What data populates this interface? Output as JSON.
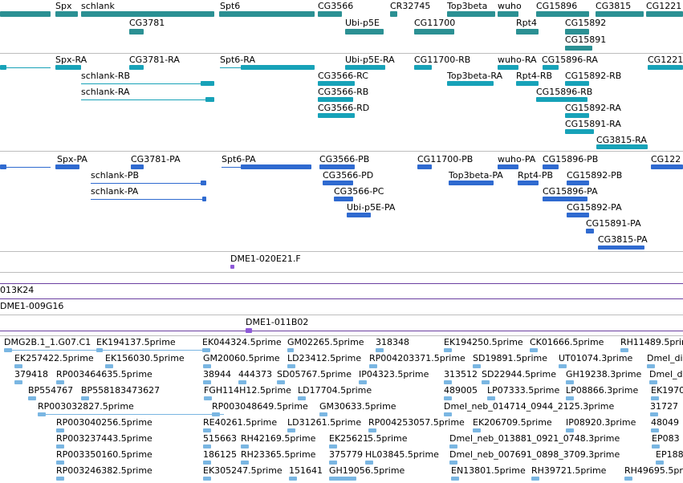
{
  "gene_track": {
    "labels": [
      "Spx",
      "schlank",
      "Spt6",
      "CG3566",
      "CR32745",
      "Top3beta",
      "wuho",
      "CG15896",
      "CG3815",
      "CG1221",
      "CG3781",
      "Ubi-p5E",
      "CG11700",
      "Rpt4",
      "CG15892",
      "CG15891"
    ]
  },
  "rna_track": {
    "labels": [
      "Spx-RA",
      "CG3781-RA",
      "Spt6-RA",
      "Ubi-p5E-RA",
      "CG11700-RB",
      "wuho-RA",
      "CG15896-RA",
      "CG1221",
      "schlank-RB",
      "Top3beta-RA",
      "Rpt4-RB",
      "CG15892-RB",
      "schlank-RA",
      "CG3566-RC",
      "CG3566-RB",
      "CG15896-RB",
      "CG3566-RD",
      "CG15892-RA",
      "CG15891-RA",
      "CG3815-RA"
    ]
  },
  "protein_track": {
    "labels": [
      "Spx-PA",
      "CG3781-PA",
      "Spt6-PA",
      "CG3566-PB",
      "CG11700-PB",
      "wuho-PA",
      "CG15896-PB",
      "CG122",
      "schlank-PB",
      "CG3566-PD",
      "Top3beta-PA",
      "Rpt4-PB",
      "CG15892-PB",
      "schlank-PA",
      "CG3566-PC",
      "CG15896-PA",
      "Ubi-p5E-PA",
      "CG15892-PA",
      "CG15891-PA",
      "CG3815-PA"
    ]
  },
  "clone_tracks": {
    "labels": [
      "DME1-020E21.F",
      "013K24",
      "DME1-009G16",
      "DME1-011B02"
    ]
  },
  "est_track": {
    "labels": [
      "DMG2B.1_1.G07.C1",
      "EK194137.5prime",
      "EK044324.5prime",
      "GM02265.5prime",
      "318348",
      "EK194250.5prime",
      "CK01666.5prime",
      "RH11489.5prime",
      "EK257422.5prime",
      "EK156030.5prime",
      "GM20060.5prime",
      "LD23412.5prime",
      "RP004203371.5prime",
      "SD19891.5prime",
      "UT01074.3prime",
      "Dmel_dig",
      "379418",
      "RP003464635.5prime",
      "38944",
      "444373",
      "SD05767.5prime",
      "IP04323.5prime",
      "313512",
      "SD22944.5prime",
      "GH19238.3prime",
      "Dmel_d",
      "BP554767",
      "BP558183473627",
      "FGH114H12.5prime",
      "LD17704.5prime",
      "489005",
      "LP07333.5prime",
      "LP08866.3prime",
      "EK1970",
      "RP003032827.5prime",
      "RP003048649.5prime",
      "GM30633.5prime",
      "Dmel_neb_014714_0944_2125.3prime",
      "31727",
      "RP003040256.5prime",
      "RE40261.5prime",
      "LD31261.5prime",
      "RP004253057.5prime",
      "EK206709.5prime",
      "IP08920.3prime",
      "48049",
      "RP003237443.5prime",
      "515663",
      "RH42169.5prime",
      "EK25621",
      "5.5prime",
      "Dmel_neb_013881_0921_0748.3prime",
      "EP083",
      "RP003350160.5prime",
      "186125",
      "RH23365.5prime",
      "375779",
      "HL03845.5prime",
      "Dmel_neb_007691_0898_3709.3prime",
      "EP188",
      "RP003246382.5prime",
      "EK305247.5prime",
      "151641",
      "GH19056.5prime",
      "EN13801.5prime",
      "RH39721.5prime",
      "RH49695.5prime"
    ]
  }
}
